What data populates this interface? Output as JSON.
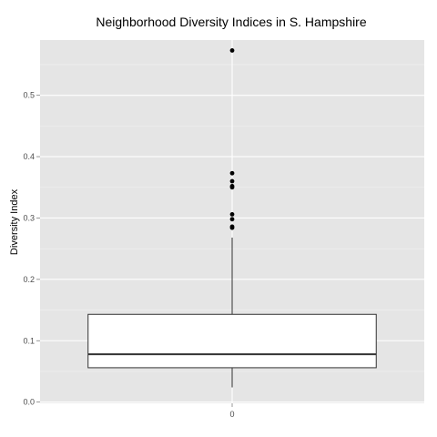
{
  "chart_data": {
    "type": "box",
    "title": "Neighborhood Diversity Indices in S. Hampshire",
    "xlabel": "",
    "ylabel": "Diversity Index",
    "ylim": [
      -0.002,
      0.59
    ],
    "y_ticks": [
      0.0,
      0.1,
      0.2,
      0.3,
      0.4,
      0.5
    ],
    "y_tick_labels": [
      "0.0",
      "0.1",
      "0.2",
      "0.3",
      "0.4",
      "0.5"
    ],
    "categories": [
      "0"
    ],
    "boxes": [
      {
        "category": "0",
        "whisker_low": 0.024,
        "q1": 0.056,
        "median": 0.078,
        "q3": 0.143,
        "whisker_high": 0.268,
        "outliers": [
          0.284,
          0.286,
          0.298,
          0.306,
          0.35,
          0.352,
          0.36,
          0.373,
          0.573
        ]
      }
    ],
    "grid": true,
    "legend": "none",
    "colors": {
      "panel": "#e5e5e5",
      "grid": "#ffffff",
      "box_fill": "#ffffff",
      "box_stroke": "#333333",
      "point": "#000000"
    }
  }
}
